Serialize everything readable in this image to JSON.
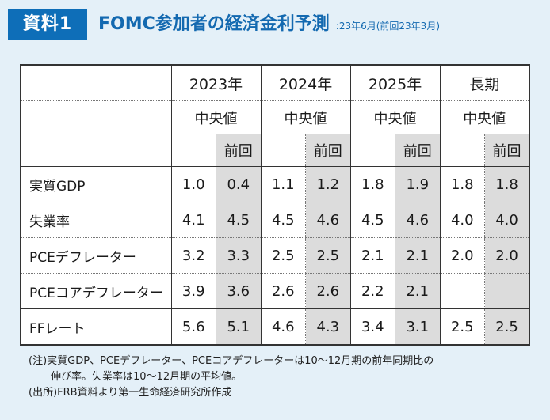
{
  "header": {
    "badge": "資料1",
    "title": "FOMC参加者の経済金利予測",
    "subtitle": ":23年6月(前回23年3月)"
  },
  "table": {
    "years": [
      "2023年",
      "2024年",
      "2025年",
      "長期"
    ],
    "median_label": "中央値",
    "prev_label": "前回",
    "rows": [
      {
        "label": "実質GDP",
        "values": [
          "1.0",
          "0.4",
          "1.1",
          "1.2",
          "1.8",
          "1.9",
          "1.8",
          "1.8"
        ]
      },
      {
        "label": "失業率",
        "values": [
          "4.1",
          "4.5",
          "4.5",
          "4.6",
          "4.5",
          "4.6",
          "4.0",
          "4.0"
        ]
      },
      {
        "label": "PCEデフレーター",
        "values": [
          "3.2",
          "3.3",
          "2.5",
          "2.5",
          "2.1",
          "2.1",
          "2.0",
          "2.0"
        ]
      },
      {
        "label": "PCEコアデフレーター",
        "values": [
          "3.9",
          "3.6",
          "2.6",
          "2.6",
          "2.2",
          "2.1",
          "",
          ""
        ]
      },
      {
        "label": "FFレート",
        "values": [
          "5.6",
          "5.1",
          "4.6",
          "4.3",
          "3.4",
          "3.1",
          "2.5",
          "2.5"
        ]
      }
    ]
  },
  "notes": {
    "line1": "(注)実質GDP、PCEデフレーター、PCEコアデフレーターは10～12月期の前年同期比の",
    "line2": "伸び率。失業率は10～12月期の平均値。",
    "line3": "(出所)FRB資料より第一生命経済研究所作成"
  }
}
